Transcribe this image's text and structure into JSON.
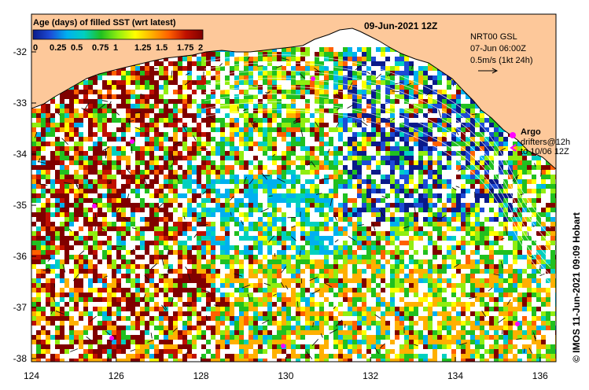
{
  "date_label": "09-Jun-2021 12Z",
  "colorbar": {
    "title": "Age (days) of filled SST (wrt latest)",
    "ticks": [
      "0",
      "0.25",
      "0.5",
      "0.75",
      "1",
      "1.25",
      "1.5",
      "1.75",
      "2"
    ],
    "colors": [
      "#0a1a8a",
      "#1d4bd6",
      "#00b0f0",
      "#00d0c0",
      "#20c020",
      "#90ee10",
      "#ffff00",
      "#ffb000",
      "#ff6000",
      "#c01000",
      "#800000"
    ]
  },
  "info_lines": [
    "NRT00 GSL",
    "07-Jun 06:00Z",
    "0.5m/s (1kt 24h)"
  ],
  "legend": {
    "argo": "Argo",
    "drifters_line1": "drifters@12h",
    "drifters_line2": "to 10/06 12Z"
  },
  "axes": {
    "lat_ticks": [
      "-32",
      "-33",
      "-34",
      "-35",
      "-36",
      "-37",
      "-38"
    ],
    "lon_ticks": [
      "124",
      "126",
      "128",
      "130",
      "132",
      "134",
      "136"
    ]
  },
  "credit": "© IMOS 11-Jun-2021 09:09 Hobart",
  "colors": {
    "land": "#fdc89a",
    "argo": "#ff00ff",
    "ocean_bg": "#ffffff"
  }
}
